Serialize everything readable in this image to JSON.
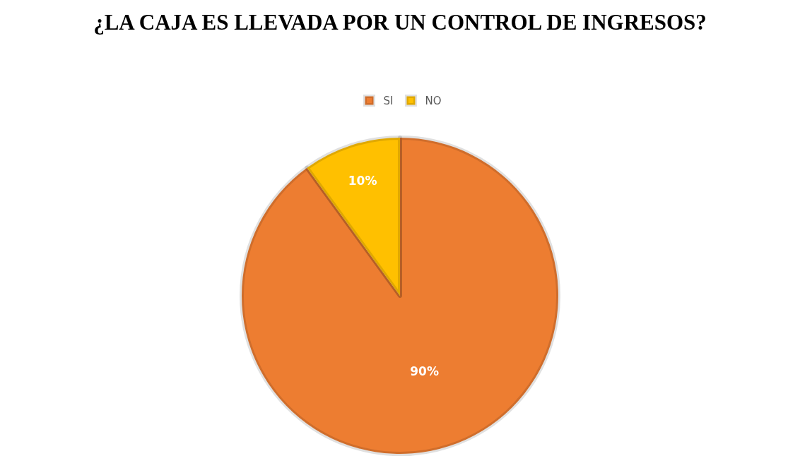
{
  "chart_data": {
    "type": "pie",
    "title": "¿LA CAJA ES LLEVADA POR UN CONTROL DE INGRESOS?",
    "categories": [
      "SI",
      "NO"
    ],
    "values": [
      90,
      10
    ],
    "colors": [
      "#ed7d31",
      "#ffc000"
    ],
    "value_labels": [
      "90%",
      "10%"
    ],
    "legend": "top"
  }
}
